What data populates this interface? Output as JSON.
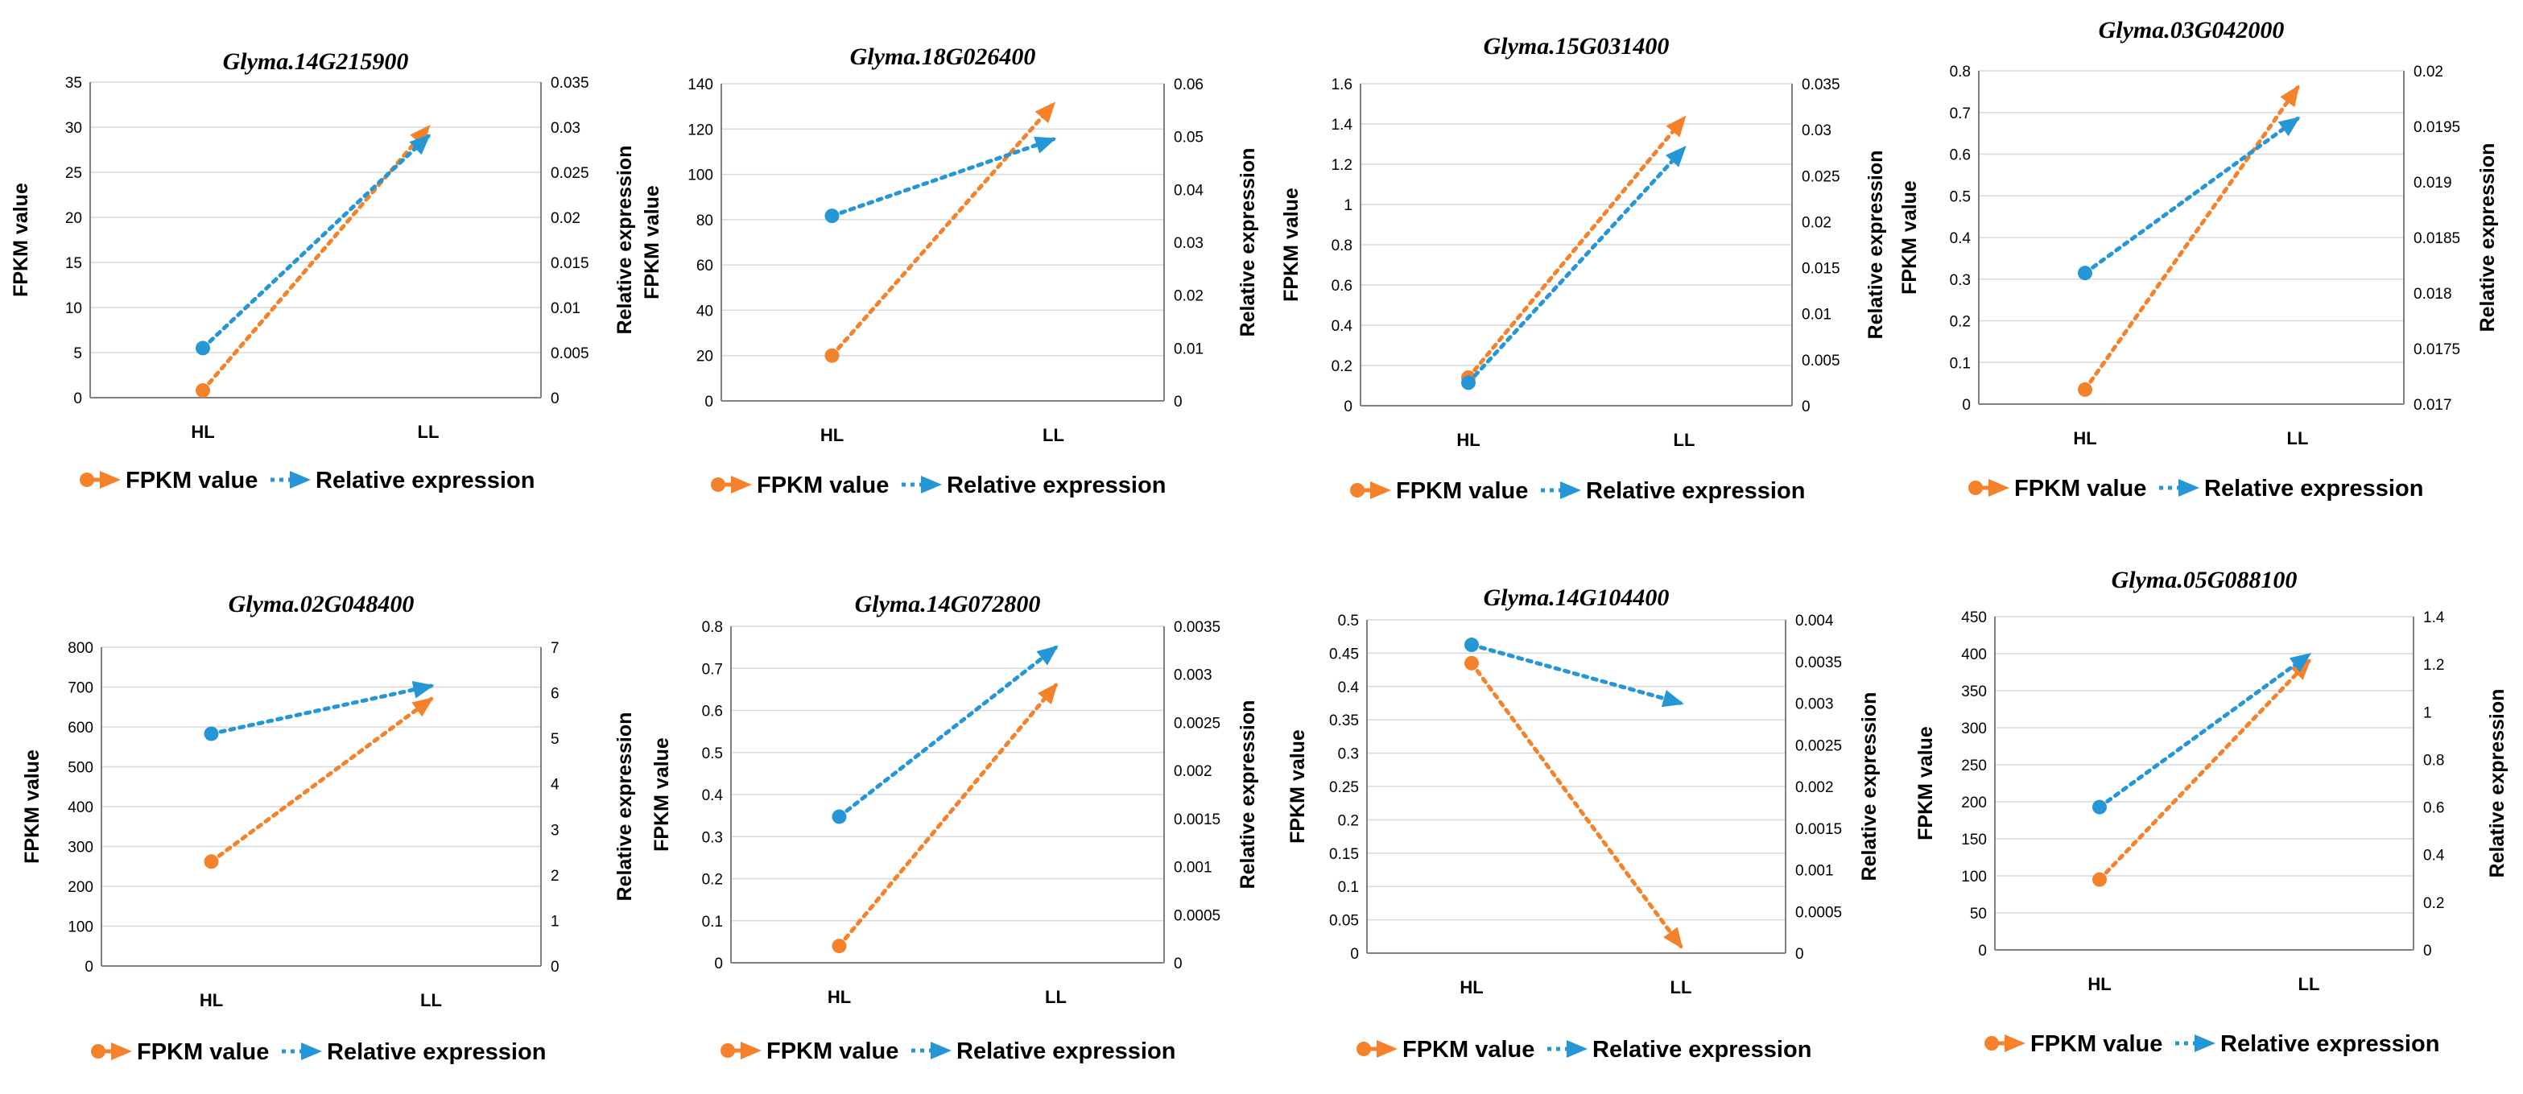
{
  "colors": {
    "fpkm": "#f5822a",
    "relative": "#2596d6",
    "grid": "#d9d9d9",
    "axis": "#808080"
  },
  "chart_data": [
    {
      "type": "line",
      "title": "Glyma.14G215900",
      "categories": [
        "HL",
        "LL"
      ],
      "ylabel": "FPKM value",
      "y2label": "Relative expression",
      "ylim": [
        0,
        35
      ],
      "yticks": [
        "0",
        "5",
        "10",
        "15",
        "20",
        "25",
        "30",
        "35"
      ],
      "y2lim": [
        0,
        0.035
      ],
      "y2ticks": [
        "0",
        "0.005",
        "0.01",
        "0.015",
        "0.02",
        "0.025",
        "0.03",
        "0.035"
      ],
      "series": [
        {
          "name": "FPKM value",
          "axis": "left",
          "values": [
            0.8,
            30
          ]
        },
        {
          "name": "Relative expression",
          "axis": "right",
          "values": [
            0.0055,
            0.029
          ]
        }
      ]
    },
    {
      "type": "line",
      "title": "Glyma.18G026400",
      "categories": [
        "HL",
        "LL"
      ],
      "ylabel": "FPKM value",
      "y2label": "Relative expression",
      "ylim": [
        0,
        140
      ],
      "yticks": [
        "0",
        "20",
        "40",
        "60",
        "80",
        "100",
        "120",
        "140"
      ],
      "y2lim": [
        0,
        0.06
      ],
      "y2ticks": [
        "0",
        "0.01",
        "0.02",
        "0.03",
        "0.04",
        "0.05",
        "0.06"
      ],
      "series": [
        {
          "name": "FPKM value",
          "axis": "left",
          "values": [
            20,
            131
          ]
        },
        {
          "name": "Relative expression",
          "axis": "right",
          "values": [
            0.035,
            0.0495
          ]
        }
      ]
    },
    {
      "type": "line",
      "title": "Glyma.15G031400",
      "categories": [
        "HL",
        "LL"
      ],
      "ylabel": "FPKM value",
      "y2label": "Relative expression",
      "ylim": [
        0,
        1.6
      ],
      "yticks": [
        "0",
        "0.2",
        "0.4",
        "0.6",
        "0.8",
        "1",
        "1.2",
        "1.4",
        "1.6"
      ],
      "y2lim": [
        0,
        0.035
      ],
      "y2ticks": [
        "0",
        "0.005",
        "0.01",
        "0.015",
        "0.02",
        "0.025",
        "0.03",
        "0.035"
      ],
      "series": [
        {
          "name": "FPKM value",
          "axis": "left",
          "values": [
            0.14,
            1.43
          ]
        },
        {
          "name": "Relative expression",
          "axis": "right",
          "values": [
            0.0025,
            0.028
          ]
        }
      ]
    },
    {
      "type": "line",
      "title": "Glyma.03G042000",
      "categories": [
        "HL",
        "LL"
      ],
      "ylabel": "FPKM value",
      "y2label": "Relative expression",
      "ylim": [
        0,
        0.8
      ],
      "yticks": [
        "0",
        "0.1",
        "0.2",
        "0.3",
        "0.4",
        "0.5",
        "0.6",
        "0.7",
        "0.8"
      ],
      "y2lim": [
        0.017,
        0.02
      ],
      "y2ticks": [
        "0.017",
        "0.0175",
        "0.018",
        "0.0185",
        "0.019",
        "0.0195",
        "0.02"
      ],
      "series": [
        {
          "name": "FPKM value",
          "axis": "left",
          "values": [
            0.035,
            0.76
          ]
        },
        {
          "name": "Relative expression",
          "axis": "right",
          "values": [
            0.01818,
            0.01957
          ]
        }
      ]
    },
    {
      "type": "line",
      "title": "Glyma.02G048400",
      "categories": [
        "HL",
        "LL"
      ],
      "ylabel": "FPKM value",
      "y2label": "Relative expression",
      "ylim": [
        0,
        800
      ],
      "yticks": [
        "0",
        "100",
        "200",
        "300",
        "400",
        "500",
        "600",
        "700",
        "800"
      ],
      "y2lim": [
        0,
        7
      ],
      "y2ticks": [
        "0",
        "1",
        "2",
        "3",
        "4",
        "5",
        "6",
        "7"
      ],
      "series": [
        {
          "name": "FPKM value",
          "axis": "left",
          "values": [
            262,
            670
          ]
        },
        {
          "name": "Relative expression",
          "axis": "right",
          "values": [
            5.1,
            6.15
          ]
        }
      ]
    },
    {
      "type": "line",
      "title": "Glyma.14G072800",
      "categories": [
        "HL",
        "LL"
      ],
      "ylabel": "FPKM value",
      "y2label": "Relative expression",
      "ylim": [
        0,
        0.8
      ],
      "yticks": [
        "0",
        "0.1",
        "0.2",
        "0.3",
        "0.4",
        "0.5",
        "0.6",
        "0.7",
        "0.8"
      ],
      "y2lim": [
        0,
        0.0035
      ],
      "y2ticks": [
        "0",
        "0.0005",
        "0.001",
        "0.0015",
        "0.002",
        "0.0025",
        "0.003",
        "0.0035"
      ],
      "series": [
        {
          "name": "FPKM value",
          "axis": "left",
          "values": [
            0.04,
            0.66
          ]
        },
        {
          "name": "Relative expression",
          "axis": "right",
          "values": [
            0.00152,
            0.00328
          ]
        }
      ]
    },
    {
      "type": "line",
      "title": "Glyma.14G104400",
      "categories": [
        "HL",
        "LL"
      ],
      "ylabel": "FPKM value",
      "y2label": "Relative expression",
      "ylim": [
        0,
        0.5
      ],
      "yticks": [
        "0",
        "0.05",
        "0.1",
        "0.15",
        "0.2",
        "0.25",
        "0.3",
        "0.35",
        "0.4",
        "0.45",
        "0.5"
      ],
      "y2lim": [
        0,
        0.004
      ],
      "y2ticks": [
        "0",
        "0.0005",
        "0.001",
        "0.0015",
        "0.002",
        "0.0025",
        "0.003",
        "0.0035",
        "0.004"
      ],
      "series": [
        {
          "name": "FPKM value",
          "axis": "left",
          "values": [
            0.435,
            0.01
          ]
        },
        {
          "name": "Relative expression",
          "axis": "right",
          "values": [
            0.0037,
            0.003
          ]
        }
      ]
    },
    {
      "type": "line",
      "title": "Glyma.05G088100",
      "categories": [
        "HL",
        "LL"
      ],
      "ylabel": "FPKM  value",
      "y2label": "Relative expression",
      "ylim": [
        0,
        450
      ],
      "yticks": [
        "0",
        "50",
        "100",
        "150",
        "200",
        "250",
        "300",
        "350",
        "400",
        "450"
      ],
      "y2lim": [
        0,
        1.4
      ],
      "y2ticks": [
        "0",
        "0.2",
        "0.4",
        "0.6",
        "0.8",
        "1",
        "1.2",
        "1.4"
      ],
      "series": [
        {
          "name": "FPKM value",
          "axis": "left",
          "values": [
            95,
            390
          ]
        },
        {
          "name": "Relative expression",
          "axis": "right",
          "values": [
            0.6,
            1.24
          ]
        }
      ]
    }
  ]
}
